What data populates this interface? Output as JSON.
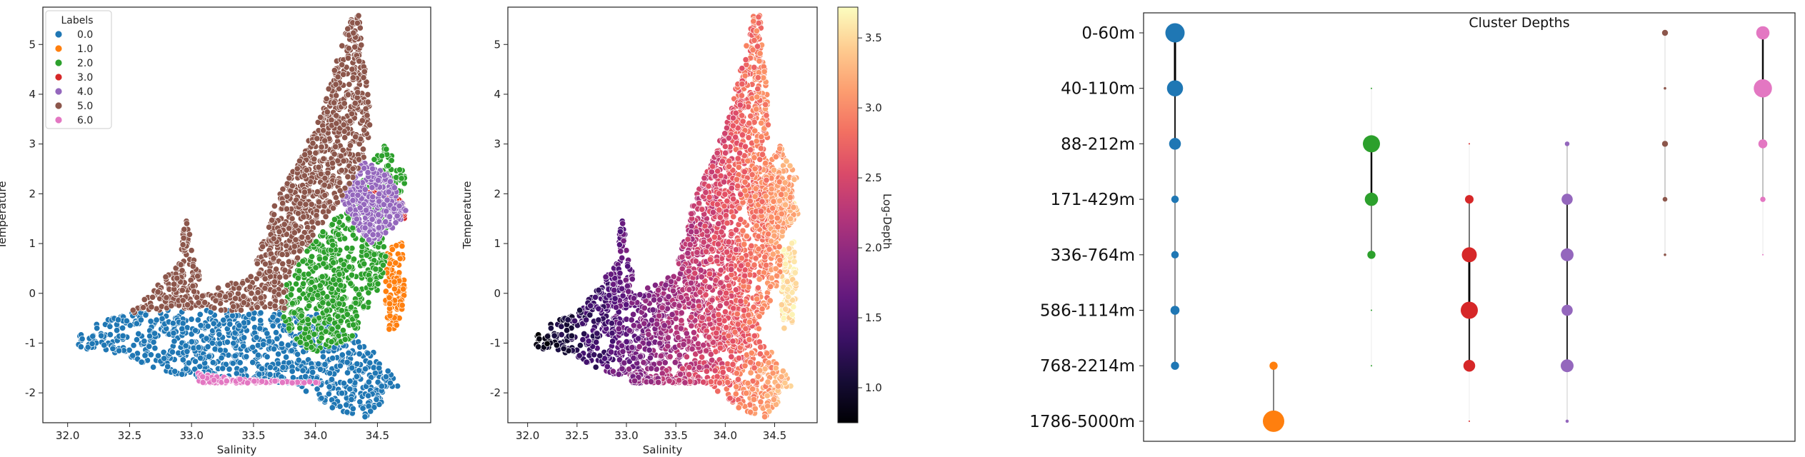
{
  "chart_data": [
    {
      "type": "scatter",
      "xlabel": "Salinity",
      "ylabel": "Temperature",
      "xlim": [
        31.8,
        34.93
      ],
      "ylim": [
        -2.6,
        5.75
      ],
      "xticks": [
        "32.0",
        "32.5",
        "33.0",
        "33.5",
        "34.0",
        "34.5"
      ],
      "yticks": [
        "-2",
        "-1",
        "0",
        "1",
        "2",
        "3",
        "4",
        "5"
      ],
      "legend": {
        "title": "Labels",
        "position": "upper-left",
        "labels": [
          "0.0",
          "1.0",
          "2.0",
          "3.0",
          "4.0",
          "5.0",
          "6.0"
        ]
      },
      "colors": [
        "#1f77b4",
        "#ff7f0e",
        "#2ca02c",
        "#d62728",
        "#9467bd",
        "#8c564b",
        "#e377c2"
      ],
      "series": [
        {
          "name": "0.0",
          "region": [
            [
              32.0,
              -1.1
            ],
            [
              32.2,
              -0.6
            ],
            [
              32.5,
              -0.4
            ],
            [
              33.0,
              -0.3
            ],
            [
              33.5,
              -0.35
            ],
            [
              34.0,
              -0.4
            ],
            [
              34.4,
              -0.9
            ],
            [
              34.7,
              -1.8
            ],
            [
              34.4,
              -2.5
            ],
            [
              34.1,
              -2.3
            ],
            [
              33.8,
              -1.8
            ],
            [
              33.2,
              -1.75
            ],
            [
              32.8,
              -1.6
            ],
            [
              32.4,
              -1.2
            ]
          ]
        },
        {
          "name": "1.0",
          "region": [
            [
              34.58,
              0.9
            ],
            [
              34.7,
              1.05
            ],
            [
              34.72,
              0.0
            ],
            [
              34.68,
              -0.6
            ],
            [
              34.6,
              -0.8
            ],
            [
              34.56,
              -0.2
            ]
          ]
        },
        {
          "name": "2.0",
          "region": [
            [
              33.75,
              0.1
            ],
            [
              33.9,
              0.8
            ],
            [
              34.15,
              1.5
            ],
            [
              34.45,
              2.6
            ],
            [
              34.55,
              3.0
            ],
            [
              34.75,
              2.3
            ],
            [
              34.6,
              1.5
            ],
            [
              34.55,
              0.3
            ],
            [
              34.3,
              -0.9
            ],
            [
              34.0,
              -1.2
            ],
            [
              33.8,
              -0.9
            ],
            [
              33.72,
              -0.3
            ]
          ]
        },
        {
          "name": "3.0",
          "region": [
            [
              34.4,
              2.1
            ],
            [
              34.6,
              2.05
            ],
            [
              34.72,
              1.8
            ],
            [
              34.72,
              1.5
            ],
            [
              34.55,
              1.75
            ],
            [
              34.42,
              1.9
            ]
          ]
        },
        {
          "name": "4.0",
          "region": [
            [
              34.2,
              1.95
            ],
            [
              34.4,
              2.7
            ],
            [
              34.62,
              2.3
            ],
            [
              34.74,
              1.6
            ],
            [
              34.62,
              1.3
            ],
            [
              34.45,
              1.0
            ],
            [
              34.3,
              1.4
            ]
          ]
        },
        {
          "name": "5.0",
          "region": [
            [
              32.5,
              -0.4
            ],
            [
              32.9,
              0.6
            ],
            [
              32.95,
              1.55
            ],
            [
              33.1,
              0.0
            ],
            [
              33.5,
              0.4
            ],
            [
              33.6,
              1.5
            ],
            [
              33.85,
              2.6
            ],
            [
              34.05,
              3.6
            ],
            [
              34.15,
              4.5
            ],
            [
              34.3,
              5.7
            ],
            [
              34.35,
              5.6
            ],
            [
              34.4,
              4.5
            ],
            [
              34.45,
              3.4
            ],
            [
              34.4,
              2.7
            ],
            [
              34.2,
              1.9
            ],
            [
              34.0,
              1.2
            ],
            [
              33.8,
              0.5
            ],
            [
              33.75,
              -0.3
            ],
            [
              33.3,
              -0.35
            ],
            [
              32.9,
              -0.3
            ]
          ]
        },
        {
          "name": "6.0",
          "region": [
            [
              33.05,
              -1.6
            ],
            [
              33.3,
              -1.7
            ],
            [
              33.6,
              -1.75
            ],
            [
              34.0,
              -1.78
            ],
            [
              34.05,
              -1.8
            ],
            [
              33.4,
              -1.8
            ],
            [
              33.05,
              -1.8
            ]
          ]
        }
      ]
    },
    {
      "type": "scatter",
      "xlabel": "Salinity",
      "ylabel": "Temperature",
      "xlim": [
        31.8,
        34.93
      ],
      "ylim": [
        -2.6,
        5.75
      ],
      "xticks": [
        "32.0",
        "32.5",
        "33.0",
        "33.5",
        "34.0",
        "34.5"
      ],
      "yticks": [
        "-2",
        "-1",
        "0",
        "1",
        "2",
        "3",
        "4",
        "5"
      ],
      "colorbar": {
        "label": "Log-Depth",
        "range": [
          0.75,
          3.72
        ],
        "ticks": [
          "1.0",
          "1.5",
          "2.0",
          "2.5",
          "3.0",
          "3.5"
        ],
        "colormap": "magma"
      }
    },
    {
      "type": "scatter",
      "title": "Cluster Depths",
      "depth_bins": [
        "0-60m",
        "40-110m",
        "88-212m",
        "171-429m",
        "336-764m",
        "586-1114m",
        "768-2214m",
        "1786-5000m"
      ],
      "clusters": [
        {
          "name": "0.0",
          "sizes": [
            0.9,
            0.75,
            0.55,
            0.35,
            0.35,
            0.42,
            0.38,
            0.0
          ]
        },
        {
          "name": "1.0",
          "sizes": [
            0.0,
            0.0,
            0.0,
            0.0,
            0.0,
            0.0,
            0.38,
            1.0
          ]
        },
        {
          "name": "2.0",
          "sizes": [
            0.0,
            0.06,
            0.8,
            0.62,
            0.38,
            0.06,
            0.03,
            0.0
          ]
        },
        {
          "name": "3.0",
          "sizes": [
            0.0,
            0.0,
            0.04,
            0.4,
            0.7,
            0.8,
            0.55,
            0.02
          ]
        },
        {
          "name": "4.0",
          "sizes": [
            0.0,
            0.0,
            0.22,
            0.52,
            0.6,
            0.52,
            0.6,
            0.15
          ]
        },
        {
          "name": "5.0",
          "sizes": [
            0.28,
            0.12,
            0.28,
            0.22,
            0.12,
            0.0,
            0.0,
            0.0
          ]
        },
        {
          "name": "6.0",
          "sizes": [
            0.62,
            0.85,
            0.42,
            0.25,
            0.05,
            0.0,
            0.0,
            0.0
          ]
        }
      ]
    }
  ]
}
